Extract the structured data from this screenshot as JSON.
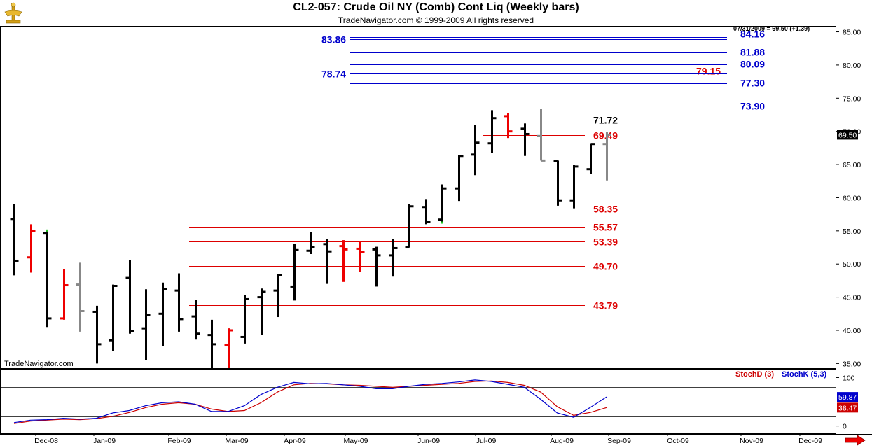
{
  "header": {
    "title": "CL2-057:  Crude Oil NY (Comb) Cont Liq  (Weekly bars)",
    "copyright": "TradeNavigator.com © 1999-2009 All rights reserved",
    "last_quote": "07/31/2009 = 69.50 (+1.39)"
  },
  "watermark": "TradeNavigator.com",
  "study_labels": {
    "stochd": "StochD (3)",
    "stochk": "StochK (5,3)"
  },
  "colors": {
    "up_bar": "#000000",
    "down_bar": "#ee0000",
    "neutral_bar": "#888888",
    "blue_line": "#0000cc",
    "red_line": "#dd0000",
    "grid": "#888888"
  },
  "chart_data": [
    {
      "type": "ohlc",
      "title": "CL2-057:  Crude Oil NY (Comb) Cont Liq  (Weekly bars)",
      "y_ticks": [
        "35.00",
        "40.00",
        "45.00",
        "50.00",
        "55.00",
        "60.00",
        "65.00",
        "70.00",
        "75.00",
        "80.00",
        "85.00"
      ],
      "y_range": [
        34.3,
        85.9
      ],
      "x_ticks": [
        "Dec-08",
        "Jan-09",
        "Feb-09",
        "Mar-09",
        "Apr-09",
        "May-09",
        "Jun-09",
        "Jul-09",
        "Aug-09",
        "Sep-09",
        "Oct-09",
        "Nov-09",
        "Dec-09"
      ],
      "last_price_label": "69.50",
      "bars": [
        {
          "o": 56.8,
          "h": 59.0,
          "l": 48.3,
          "c": 50.5,
          "col": "k"
        },
        {
          "o": 51.0,
          "h": 56.0,
          "l": 48.7,
          "c": 55.0,
          "col": "r"
        },
        {
          "o": 54.7,
          "h": 55.0,
          "l": 40.5,
          "c": 41.8,
          "col": "k",
          "mark": "hi"
        },
        {
          "o": 41.8,
          "h": 49.2,
          "l": 41.6,
          "c": 46.8,
          "col": "r"
        },
        {
          "o": 46.9,
          "h": 50.2,
          "l": 39.8,
          "c": 42.9,
          "col": "n"
        },
        {
          "o": 42.8,
          "h": 43.7,
          "l": 35.0,
          "c": 37.9,
          "col": "k"
        },
        {
          "o": 38.5,
          "h": 46.9,
          "l": 36.9,
          "c": 46.7,
          "col": "k"
        },
        {
          "o": 47.9,
          "h": 50.6,
          "l": 39.5,
          "c": 39.9,
          "col": "k"
        },
        {
          "o": 40.3,
          "h": 46.2,
          "l": 35.5,
          "c": 42.3,
          "col": "k"
        },
        {
          "o": 42.5,
          "h": 47.2,
          "l": 37.6,
          "c": 46.2,
          "col": "k"
        },
        {
          "o": 46.0,
          "h": 48.6,
          "l": 39.8,
          "c": 41.7,
          "col": "k"
        },
        {
          "o": 42.1,
          "h": 44.6,
          "l": 38.6,
          "c": 39.5,
          "col": "k"
        },
        {
          "o": 39.3,
          "h": 41.6,
          "l": 34.0,
          "c": 37.9,
          "col": "k"
        },
        {
          "o": 37.8,
          "h": 40.3,
          "l": 34.3,
          "c": 40.0,
          "col": "r"
        },
        {
          "o": 39.0,
          "h": 45.3,
          "l": 38.0,
          "c": 44.7,
          "col": "k"
        },
        {
          "o": 45.0,
          "h": 46.3,
          "l": 39.3,
          "c": 45.8,
          "col": "k"
        },
        {
          "o": 46.0,
          "h": 48.5,
          "l": 42.0,
          "c": 48.3,
          "col": "k"
        },
        {
          "o": 46.6,
          "h": 53.0,
          "l": 44.5,
          "c": 52.1,
          "col": "k"
        },
        {
          "o": 52.0,
          "h": 54.8,
          "l": 51.5,
          "c": 52.6,
          "col": "k"
        },
        {
          "o": 53.0,
          "h": 53.8,
          "l": 47.0,
          "c": 51.9,
          "col": "k"
        },
        {
          "o": 52.7,
          "h": 53.6,
          "l": 47.3,
          "c": 52.2,
          "col": "r"
        },
        {
          "o": 52.3,
          "h": 53.5,
          "l": 48.8,
          "c": 51.8,
          "col": "r"
        },
        {
          "o": 52.2,
          "h": 52.6,
          "l": 46.6,
          "c": 51.3,
          "col": "k"
        },
        {
          "o": 51.3,
          "h": 53.8,
          "l": 48.1,
          "c": 52.4,
          "col": "k"
        },
        {
          "o": 52.5,
          "h": 59.0,
          "l": 52.5,
          "c": 58.7,
          "col": "k"
        },
        {
          "o": 58.6,
          "h": 59.8,
          "l": 56.0,
          "c": 56.4,
          "col": "k"
        },
        {
          "o": 56.7,
          "h": 62.0,
          "l": 56.3,
          "c": 61.4,
          "col": "k",
          "mark": "lo"
        },
        {
          "o": 61.4,
          "h": 66.4,
          "l": 59.5,
          "c": 66.3,
          "col": "k"
        },
        {
          "o": 66.5,
          "h": 71.0,
          "l": 63.4,
          "c": 68.3,
          "col": "k"
        },
        {
          "o": 68.2,
          "h": 73.2,
          "l": 66.8,
          "c": 72.0,
          "col": "k"
        },
        {
          "o": 72.3,
          "h": 72.8,
          "l": 69.0,
          "c": 70.0,
          "col": "r"
        },
        {
          "o": 70.4,
          "h": 71.2,
          "l": 66.3,
          "c": 69.6,
          "col": "k"
        },
        {
          "o": 69.3,
          "h": 73.4,
          "l": 65.6,
          "c": 65.6,
          "col": "n"
        },
        {
          "o": 65.5,
          "h": 65.6,
          "l": 58.8,
          "c": 59.6,
          "col": "k"
        },
        {
          "o": 59.6,
          "h": 65.0,
          "l": 58.4,
          "c": 64.7,
          "col": "k"
        },
        {
          "o": 64.3,
          "h": 68.2,
          "l": 63.6,
          "c": 68.1,
          "col": "k"
        },
        {
          "o": 68.1,
          "h": 69.9,
          "l": 62.6,
          "c": 69.5,
          "col": "n"
        }
      ],
      "levels": [
        {
          "value": 84.16,
          "label": "84.16",
          "color": "blue",
          "right_label": true
        },
        {
          "value": 83.86,
          "label": "83.86",
          "color": "blue",
          "left_label": true
        },
        {
          "value": 81.88,
          "label": "81.88",
          "color": "blue",
          "right_label": true
        },
        {
          "value": 80.09,
          "label": "80.09",
          "color": "blue",
          "right_label": true
        },
        {
          "value": 79.15,
          "label": "79.15",
          "color": "red",
          "right_label": true
        },
        {
          "value": 78.74,
          "label": "78.74",
          "color": "blue",
          "left_label": true
        },
        {
          "value": 77.3,
          "label": "77.30",
          "color": "blue",
          "right_label": true
        },
        {
          "value": 73.9,
          "label": "73.90",
          "color": "blue",
          "right_label": true
        },
        {
          "value": 71.72,
          "label": "71.72",
          "color": "black",
          "right_label": true
        },
        {
          "value": 69.49,
          "label": "69.49",
          "color": "red",
          "right_label": true
        },
        {
          "value": 58.35,
          "label": "58.35",
          "color": "red",
          "right_label": true
        },
        {
          "value": 55.57,
          "label": "55.57",
          "color": "red",
          "right_label": true
        },
        {
          "value": 53.39,
          "label": "53.39",
          "color": "red",
          "right_label": true
        },
        {
          "value": 49.7,
          "label": "49.70",
          "color": "red",
          "right_label": true
        },
        {
          "value": 43.79,
          "label": "43.79",
          "color": "red",
          "right_label": true
        }
      ]
    },
    {
      "type": "line",
      "title": "",
      "y_ticks": [
        "0",
        "100"
      ],
      "y_range": [
        -15,
        118
      ],
      "ref_lines": [
        20,
        80
      ],
      "series": [
        {
          "name": "StochD (3)",
          "color": "#cc0000",
          "last_label": "38.47",
          "values": [
            5,
            10,
            12,
            14,
            13,
            15,
            20,
            28,
            38,
            45,
            48,
            45,
            35,
            30,
            32,
            48,
            70,
            85,
            88,
            87,
            85,
            84,
            82,
            80,
            82,
            84,
            86,
            88,
            92,
            93,
            90,
            84,
            70,
            40,
            22,
            28,
            38
          ]
        },
        {
          "name": "StochK (5,3)",
          "color": "#0000cc",
          "last_label": "59.87",
          "values": [
            7,
            12,
            13,
            16,
            14,
            16,
            27,
            32,
            42,
            48,
            50,
            45,
            30,
            30,
            42,
            65,
            80,
            90,
            87,
            88,
            85,
            82,
            77,
            77,
            82,
            86,
            88,
            91,
            95,
            92,
            86,
            80,
            55,
            27,
            18,
            38,
            60
          ]
        }
      ]
    }
  ]
}
